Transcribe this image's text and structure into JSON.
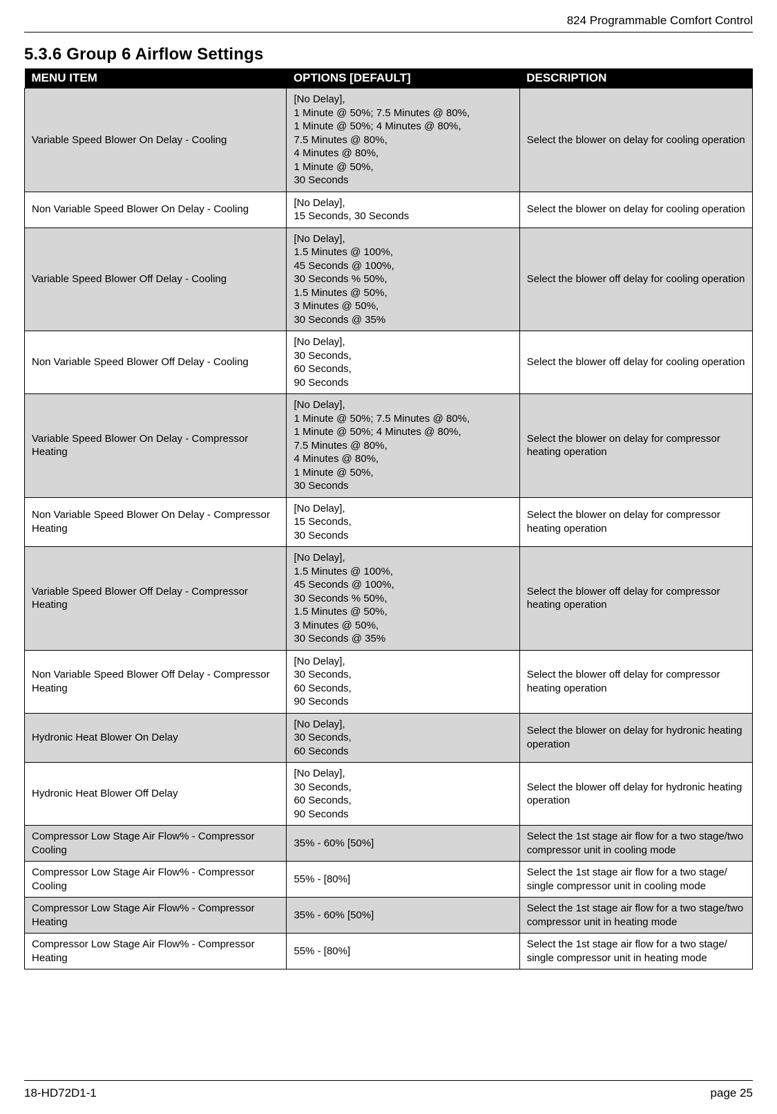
{
  "header": {
    "doc_title": "824 Programmable Comfort Control"
  },
  "section": {
    "number": "5.3.6",
    "title": "Group 6 Airflow Settings"
  },
  "table": {
    "columns": [
      "MENU ITEM",
      "OPTIONS [DEFAULT]",
      "DESCRIPTION"
    ],
    "col_widths_pct": [
      36,
      32,
      32
    ],
    "header_bg": "#000000",
    "header_fg": "#ffffff",
    "shaded_bg": "#d6d6d6",
    "plain_bg": "#ffffff",
    "border_color": "#000000",
    "font_size_pt": 11,
    "rows": [
      {
        "shaded": true,
        "menu": "Variable Speed Blower On Delay - Cooling",
        "options": "[No Delay],\n1 Minute @ 50%; 7.5 Minutes @ 80%,\n1 Minute @ 50%; 4 Minutes @ 80%,\n7.5 Minutes @ 80%,\n4 Minutes @ 80%,\n1 Minute @ 50%,\n30 Seconds",
        "desc": "Select the blower on delay for cooling operation"
      },
      {
        "shaded": false,
        "menu": "Non Variable Speed Blower On Delay - Cooling",
        "options": "[No Delay],\n15 Seconds, 30 Seconds",
        "desc": "Select the blower on delay for cooling operation"
      },
      {
        "shaded": true,
        "menu": "Variable Speed Blower Off Delay - Cooling",
        "options": "[No Delay],\n1.5 Minutes @ 100%,\n45 Seconds @ 100%,\n30 Seconds % 50%,\n1.5 Minutes @ 50%,\n3 Minutes @ 50%,\n30 Seconds @ 35%",
        "desc": "Select the blower off delay for cooling operation"
      },
      {
        "shaded": false,
        "menu": "Non Variable Speed Blower Off Delay - Cooling",
        "options": "[No Delay],\n30 Seconds,\n60 Seconds,\n90 Seconds",
        "desc": "Select the blower off delay for cooling operation"
      },
      {
        "shaded": true,
        "menu": "Variable Speed Blower On Delay - Compressor Heating",
        "options": "[No Delay],\n1 Minute @ 50%; 7.5 Minutes @ 80%,\n1 Minute @ 50%; 4 Minutes @ 80%,\n7.5 Minutes @ 80%,\n4 Minutes @ 80%,\n1 Minute @ 50%,\n30 Seconds",
        "desc": "Select the blower on delay for compressor heating operation"
      },
      {
        "shaded": false,
        "menu": "Non Variable Speed Blower On Delay - Compressor Heating",
        "options": "[No Delay],\n15 Seconds,\n30 Seconds",
        "desc": "Select the blower on delay for compressor heating operation"
      },
      {
        "shaded": true,
        "menu": "Variable Speed Blower Off Delay - Compressor Heating",
        "options": "[No Delay],\n1.5 Minutes @ 100%,\n45 Seconds @ 100%,\n30 Seconds % 50%,\n1.5 Minutes @ 50%,\n3 Minutes @ 50%,\n30 Seconds @ 35%",
        "desc": "Select the blower off delay for compressor heating operation"
      },
      {
        "shaded": false,
        "menu": "Non Variable Speed Blower Off Delay - Compressor Heating",
        "options": "[No Delay],\n30 Seconds,\n60 Seconds,\n90 Seconds",
        "desc": "Select the blower off delay for compressor heating operation"
      },
      {
        "shaded": true,
        "menu": "Hydronic Heat Blower On Delay",
        "options": "[No Delay],\n30 Seconds,\n60 Seconds",
        "desc": "Select the blower on delay for hydronic heating operation"
      },
      {
        "shaded": false,
        "menu": "Hydronic Heat Blower Off Delay",
        "options": "[No Delay],\n30 Seconds,\n60 Seconds,\n90 Seconds",
        "desc": "Select the blower off delay for hydronic heating operation"
      },
      {
        "shaded": true,
        "menu": "Compressor Low Stage Air Flow% - Compressor Cooling",
        "options": "35% - 60% [50%]",
        "desc": "Select the 1st stage air flow for a two stage/two compressor unit in cooling mode"
      },
      {
        "shaded": false,
        "menu": "Compressor Low Stage Air Flow% - Compressor Cooling",
        "options": "55% - [80%]",
        "desc": "Select the 1st stage air flow for a two stage/ single compressor unit in cooling mode"
      },
      {
        "shaded": true,
        "menu": "Compressor Low Stage Air Flow% - Compressor Heating",
        "options": "35% - 60% [50%]",
        "desc": "Select the 1st stage air flow for a two stage/two compressor unit in heating mode"
      },
      {
        "shaded": false,
        "menu": "Compressor Low Stage Air Flow% - Compressor Heating",
        "options": "55% - [80%]",
        "desc": "Select the 1st stage air flow for a two stage/ single compressor unit in heating mode"
      }
    ]
  },
  "footer": {
    "doc_code": "18-HD72D1-1",
    "page_label": "page 25"
  }
}
